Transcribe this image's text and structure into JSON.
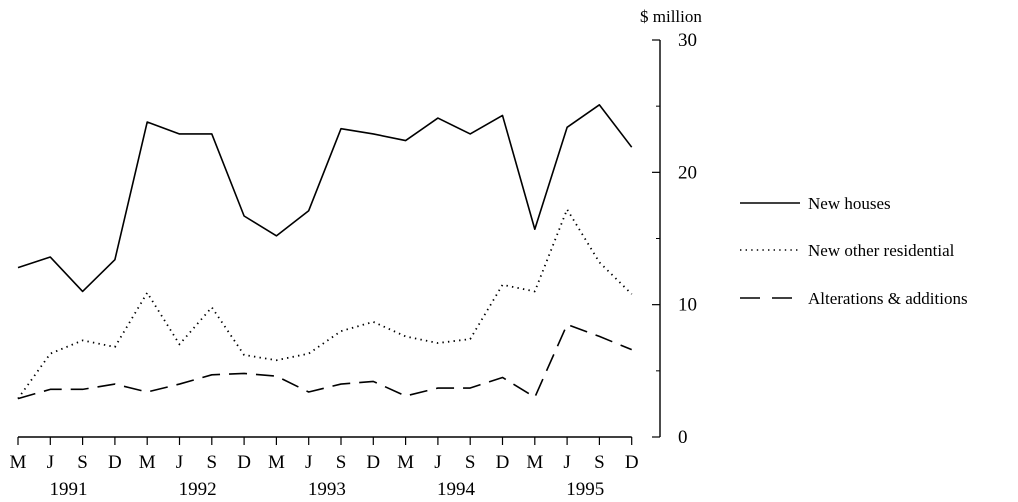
{
  "chart_data": {
    "type": "line",
    "ylabel": "$ million",
    "ylim": [
      0,
      30
    ],
    "yticks": [
      0,
      10,
      20,
      30
    ],
    "categories": [
      "M",
      "J",
      "S",
      "D",
      "M",
      "J",
      "S",
      "D",
      "M",
      "J",
      "S",
      "D",
      "M",
      "J",
      "S",
      "D",
      "M",
      "J",
      "S",
      "D"
    ],
    "years": [
      "1991",
      "1992",
      "1993",
      "1994",
      "1995"
    ],
    "series": [
      {
        "name": "New houses",
        "style": "solid",
        "values": [
          12.8,
          13.6,
          11.0,
          13.4,
          23.8,
          22.9,
          22.9,
          16.7,
          15.2,
          17.1,
          23.3,
          22.9,
          22.4,
          24.1,
          22.9,
          24.3,
          15.7,
          23.4,
          25.1,
          21.9
        ]
      },
      {
        "name": "New other residential",
        "style": "dotted",
        "values": [
          2.9,
          6.3,
          7.3,
          6.8,
          10.9,
          7.0,
          9.8,
          6.2,
          5.8,
          6.3,
          8.0,
          8.7,
          7.6,
          7.1,
          7.4,
          11.5,
          11.0,
          17.2,
          13.2,
          10.8
        ]
      },
      {
        "name": "Alterations & additions",
        "style": "dashed",
        "values": [
          2.9,
          3.6,
          3.6,
          4.0,
          3.4,
          4.0,
          4.7,
          4.8,
          4.6,
          3.4,
          4.0,
          4.2,
          3.1,
          3.7,
          3.7,
          4.5,
          3.0,
          8.5,
          7.6,
          6.6
        ]
      }
    ],
    "grid": false,
    "legend": "right"
  }
}
